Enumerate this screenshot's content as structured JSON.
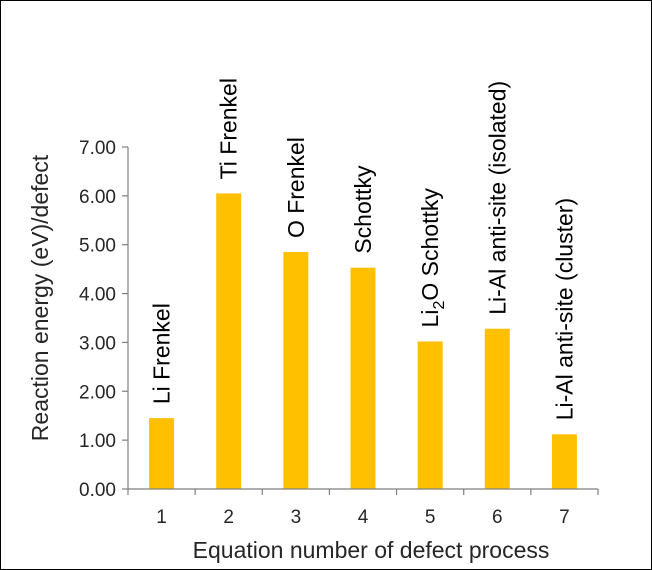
{
  "chart_data": {
    "type": "bar",
    "categories": [
      "1",
      "2",
      "3",
      "4",
      "5",
      "6",
      "7"
    ],
    "values": [
      1.45,
      6.05,
      4.85,
      4.53,
      3.02,
      3.28,
      1.12
    ],
    "bar_labels": [
      {
        "text": "Li Frenkel"
      },
      {
        "text": "Ti Frenkel"
      },
      {
        "text": "O Frenkel"
      },
      {
        "text": "Schottky"
      },
      {
        "text": "Li",
        "sub": "2",
        "rest": "O Schottky"
      },
      {
        "text": "Li-Al anti-site (isolated)"
      },
      {
        "text": "Li-Al anti-site (cluster)"
      }
    ],
    "xlabel": "Equation number of defect process",
    "ylabel": "Reaction energy (eV)/defect",
    "ylim": [
      0,
      7
    ],
    "yticks": [
      "0.00",
      "1.00",
      "2.00",
      "3.00",
      "4.00",
      "5.00",
      "6.00",
      "7.00"
    ],
    "bar_color": "#FFC000",
    "axis_color": "#7F7F7F",
    "grid": false,
    "legend": "none"
  }
}
